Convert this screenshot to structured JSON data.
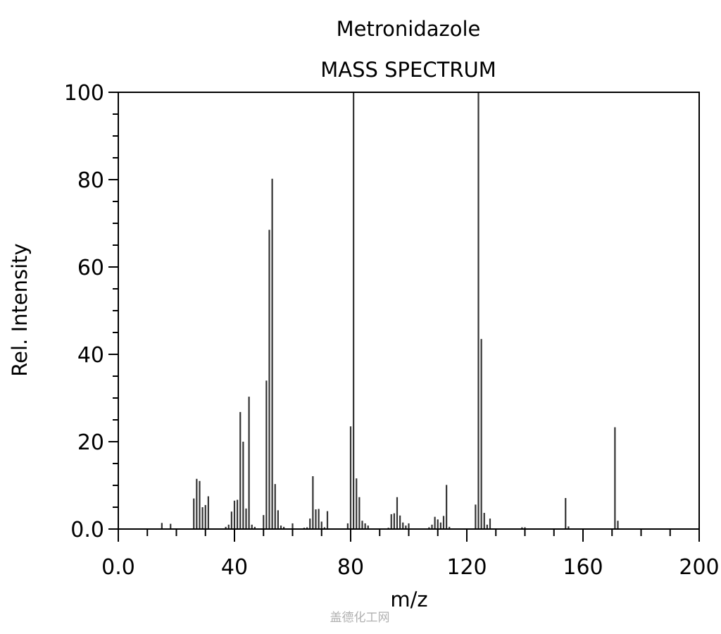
{
  "header": {
    "title": "Metronidazole",
    "subtitle": "MASS SPECTRUM"
  },
  "axes": {
    "xlabel": "m/z",
    "ylabel": "Rel. Intensity"
  },
  "watermark": "盖德化工网",
  "chart_data": {
    "type": "bar",
    "title": "Metronidazole MASS SPECTRUM",
    "xlabel": "m/z",
    "ylabel": "Rel. Intensity",
    "xlim": [
      0,
      200
    ],
    "ylim": [
      0,
      100
    ],
    "x_ticks": [
      0,
      40,
      80,
      120,
      160,
      200
    ],
    "x_tick_labels": [
      "0.0",
      "40",
      "80",
      "120",
      "160",
      "200"
    ],
    "y_ticks": [
      0,
      20,
      40,
      60,
      80,
      100
    ],
    "y_tick_labels": [
      "0.0",
      "20",
      "40",
      "60",
      "80",
      "100"
    ],
    "grid": false,
    "legend": null,
    "peaks": [
      {
        "mz": 15,
        "intensity": 1.4
      },
      {
        "mz": 18,
        "intensity": 1.2
      },
      {
        "mz": 26,
        "intensity": 7.0
      },
      {
        "mz": 27,
        "intensity": 11.5
      },
      {
        "mz": 28,
        "intensity": 11.0
      },
      {
        "mz": 29,
        "intensity": 5.0
      },
      {
        "mz": 30,
        "intensity": 5.5
      },
      {
        "mz": 31,
        "intensity": 7.5
      },
      {
        "mz": 37,
        "intensity": 0.5
      },
      {
        "mz": 38,
        "intensity": 1.0
      },
      {
        "mz": 39,
        "intensity": 4.0
      },
      {
        "mz": 40,
        "intensity": 6.5
      },
      {
        "mz": 41,
        "intensity": 6.7
      },
      {
        "mz": 42,
        "intensity": 26.8
      },
      {
        "mz": 43,
        "intensity": 20.0
      },
      {
        "mz": 44,
        "intensity": 4.7
      },
      {
        "mz": 45,
        "intensity": 30.3
      },
      {
        "mz": 46,
        "intensity": 1.0
      },
      {
        "mz": 47,
        "intensity": 0.5
      },
      {
        "mz": 50,
        "intensity": 3.2
      },
      {
        "mz": 51,
        "intensity": 34.0
      },
      {
        "mz": 52,
        "intensity": 68.5
      },
      {
        "mz": 53,
        "intensity": 80.2
      },
      {
        "mz": 54,
        "intensity": 10.3
      },
      {
        "mz": 55,
        "intensity": 4.3
      },
      {
        "mz": 56,
        "intensity": 0.8
      },
      {
        "mz": 57,
        "intensity": 0.5
      },
      {
        "mz": 60,
        "intensity": 1.3
      },
      {
        "mz": 64,
        "intensity": 0.3
      },
      {
        "mz": 65,
        "intensity": 0.4
      },
      {
        "mz": 66,
        "intensity": 2.4
      },
      {
        "mz": 67,
        "intensity": 12.1
      },
      {
        "mz": 68,
        "intensity": 4.5
      },
      {
        "mz": 69,
        "intensity": 4.6
      },
      {
        "mz": 70,
        "intensity": 1.7
      },
      {
        "mz": 71,
        "intensity": 0.4
      },
      {
        "mz": 72,
        "intensity": 4.1
      },
      {
        "mz": 79,
        "intensity": 1.3
      },
      {
        "mz": 80,
        "intensity": 23.5
      },
      {
        "mz": 81,
        "intensity": 100.0
      },
      {
        "mz": 82,
        "intensity": 11.6
      },
      {
        "mz": 83,
        "intensity": 7.3
      },
      {
        "mz": 84,
        "intensity": 1.9
      },
      {
        "mz": 85,
        "intensity": 1.3
      },
      {
        "mz": 86,
        "intensity": 0.8
      },
      {
        "mz": 93,
        "intensity": 0.3
      },
      {
        "mz": 94,
        "intensity": 3.4
      },
      {
        "mz": 95,
        "intensity": 3.6
      },
      {
        "mz": 96,
        "intensity": 7.3
      },
      {
        "mz": 97,
        "intensity": 3.1
      },
      {
        "mz": 98,
        "intensity": 1.5
      },
      {
        "mz": 99,
        "intensity": 0.8
      },
      {
        "mz": 100,
        "intensity": 1.3
      },
      {
        "mz": 107,
        "intensity": 0.4
      },
      {
        "mz": 108,
        "intensity": 1.0
      },
      {
        "mz": 109,
        "intensity": 2.8
      },
      {
        "mz": 110,
        "intensity": 2.2
      },
      {
        "mz": 111,
        "intensity": 1.5
      },
      {
        "mz": 112,
        "intensity": 3.0
      },
      {
        "mz": 113,
        "intensity": 10.1
      },
      {
        "mz": 114,
        "intensity": 0.5
      },
      {
        "mz": 123,
        "intensity": 5.6
      },
      {
        "mz": 124,
        "intensity": 100.0
      },
      {
        "mz": 125,
        "intensity": 43.5
      },
      {
        "mz": 126,
        "intensity": 3.7
      },
      {
        "mz": 127,
        "intensity": 1.0
      },
      {
        "mz": 128,
        "intensity": 2.4
      },
      {
        "mz": 139,
        "intensity": 0.4
      },
      {
        "mz": 140,
        "intensity": 0.4
      },
      {
        "mz": 154,
        "intensity": 7.1
      },
      {
        "mz": 155,
        "intensity": 0.6
      },
      {
        "mz": 171,
        "intensity": 23.3
      },
      {
        "mz": 172,
        "intensity": 1.9
      }
    ]
  }
}
